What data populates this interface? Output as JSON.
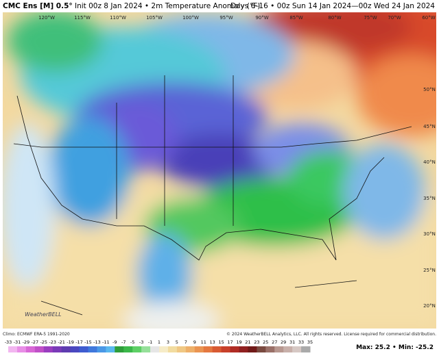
{
  "header": {
    "model": "CMC Ens [M] 0.5°",
    "init": "Init 00z 8 Jan 2024 • 2m Temperature Anomaly (°F)",
    "valid": "Days 6–16 • 00z Sun 14 Jan 2024—00z Wed 24 Jan 2024"
  },
  "map": {
    "lon_labels": [
      "120°W",
      "115°W",
      "110°W",
      "105°W",
      "100°W",
      "95°W",
      "90°W",
      "85°W",
      "80°W",
      "75°W",
      "70°W",
      "60°W"
    ],
    "lat_labels": [
      "50°N",
      "45°N",
      "40°N",
      "35°N",
      "30°N",
      "25°N",
      "20°N"
    ],
    "logo": "WeatherBELL"
  },
  "footer": {
    "climo": "Climo: ECMWF ERA-5 1991-2020",
    "copyright": "© 2024 WeatherBELL Analytics, LLC. All rights reserved. License required for commercial distribution.",
    "colorbar": {
      "ticks": [
        -33,
        -31,
        -29,
        -27,
        -25,
        -23,
        -21,
        -19,
        -17,
        -15,
        -13,
        -11,
        -9,
        -7,
        -5,
        -3,
        -1,
        1,
        3,
        5,
        7,
        9,
        11,
        13,
        15,
        17,
        19,
        21,
        23,
        25,
        27,
        29,
        31,
        33,
        35
      ]
    },
    "maxmin": "Max: 25.2 • Min: -25.2"
  }
}
